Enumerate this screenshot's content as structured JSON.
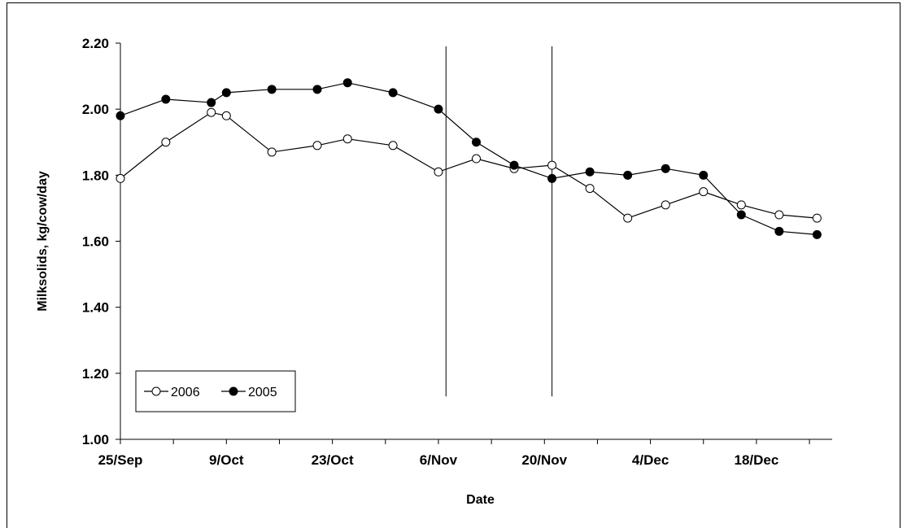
{
  "chart_data": {
    "type": "line",
    "title": "",
    "xlabel": "Date",
    "ylabel": "Milksolids, kg/cow/day",
    "ylim": [
      1.0,
      2.2
    ],
    "yticks": [
      "1.00",
      "1.20",
      "1.40",
      "1.60",
      "1.80",
      "2.00",
      "2.20"
    ],
    "xlim": [
      "25/Sep",
      "28/Dec"
    ],
    "xtick_labels": [
      "25/Sep",
      "9/Oct",
      "23/Oct",
      "6/Nov",
      "20/Nov",
      "4/Dec",
      "18/Dec"
    ],
    "x_dates": [
      "25/Sep",
      "30/Sep",
      "5/Oct",
      "10/Oct",
      "15/Oct",
      "20/Oct",
      "25/Oct",
      "30/Oct",
      "4/Nov",
      "9/Nov",
      "14/Nov",
      "19/Nov",
      "24/Nov",
      "29/Nov",
      "4/Dec",
      "9/Dec",
      "14/Dec",
      "19/Dec",
      "24/Dec",
      "28/Dec"
    ],
    "series": [
      {
        "name": "2006",
        "marker": "open-circle",
        "x_dates": [
          "25/Sep",
          "1/Oct",
          "7/Oct",
          "9/Oct",
          "15/Oct",
          "21/Oct",
          "25/Oct",
          "31/Oct",
          "6/Nov",
          "11/Nov",
          "16/Nov",
          "21/Nov",
          "26/Nov",
          "1/Dec",
          "6/Dec",
          "11/Dec",
          "16/Dec",
          "21/Dec",
          "26/Dec"
        ],
        "values": [
          1.79,
          1.9,
          1.99,
          1.98,
          1.87,
          1.89,
          1.91,
          1.89,
          1.81,
          1.85,
          1.82,
          1.83,
          1.76,
          1.67,
          1.71,
          1.75,
          1.71,
          1.68,
          1.67
        ]
      },
      {
        "name": "2005",
        "marker": "filled-circle",
        "x_dates": [
          "25/Sep",
          "1/Oct",
          "7/Oct",
          "9/Oct",
          "15/Oct",
          "21/Oct",
          "25/Oct",
          "31/Oct",
          "6/Nov",
          "11/Nov",
          "16/Nov",
          "21/Nov",
          "26/Nov",
          "1/Dec",
          "6/Dec",
          "11/Dec",
          "16/Dec",
          "21/Dec",
          "26/Dec"
        ],
        "values": [
          1.98,
          2.03,
          2.02,
          2.05,
          2.06,
          2.06,
          2.08,
          2.05,
          2.0,
          1.9,
          1.83,
          1.79,
          1.81,
          1.8,
          1.82,
          1.8,
          1.68,
          1.63,
          1.62
        ]
      }
    ],
    "vertical_lines_dates": [
      "7/Nov",
      "21/Nov"
    ],
    "vertical_lines_range": [
      1.13,
      2.19
    ],
    "legend": {
      "placement": "bottom-left",
      "entries": [
        "2006",
        "2005"
      ]
    },
    "grid": false
  }
}
